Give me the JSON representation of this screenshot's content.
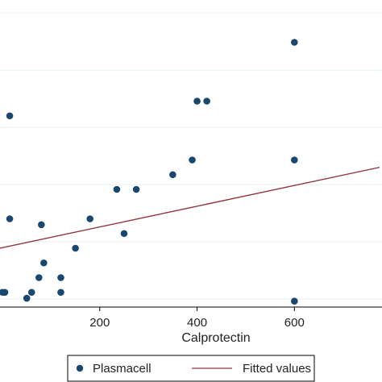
{
  "chart_data": {
    "type": "scatter",
    "xlabel": "Calprotectin",
    "ylabel": "",
    "xlim": [
      -5,
      780
    ],
    "ylim": [
      0,
      100
    ],
    "x_ticks": [
      200,
      400,
      600
    ],
    "x_tick_labels": [
      "200",
      "400",
      "600"
    ],
    "grid": true,
    "legend_position": "bottom",
    "colors": {
      "marker": "#1a476f",
      "fit_line": "#90353b",
      "grid": "#eaf2f3"
    },
    "series": [
      {
        "name": "Plasmacell",
        "kind": "scatter",
        "points": [
          [
            600,
            90
          ],
          [
            15,
            65
          ],
          [
            400,
            70
          ],
          [
            420,
            70
          ],
          [
            390,
            50
          ],
          [
            600,
            50
          ],
          [
            350,
            45
          ],
          [
            235,
            40
          ],
          [
            275,
            40
          ],
          [
            15,
            30
          ],
          [
            180,
            30
          ],
          [
            80,
            28
          ],
          [
            250,
            25
          ],
          [
            150,
            20
          ],
          [
            85,
            15
          ],
          [
            75,
            10
          ],
          [
            120,
            10
          ],
          [
            5,
            5
          ],
          [
            0,
            5
          ],
          [
            60,
            5
          ],
          [
            120,
            5
          ],
          [
            50,
            3
          ],
          [
            600,
            2
          ]
        ]
      },
      {
        "name": "Fitted values",
        "kind": "line",
        "points": [
          [
            -5,
            20
          ],
          [
            775,
            47.5
          ]
        ]
      }
    ]
  }
}
